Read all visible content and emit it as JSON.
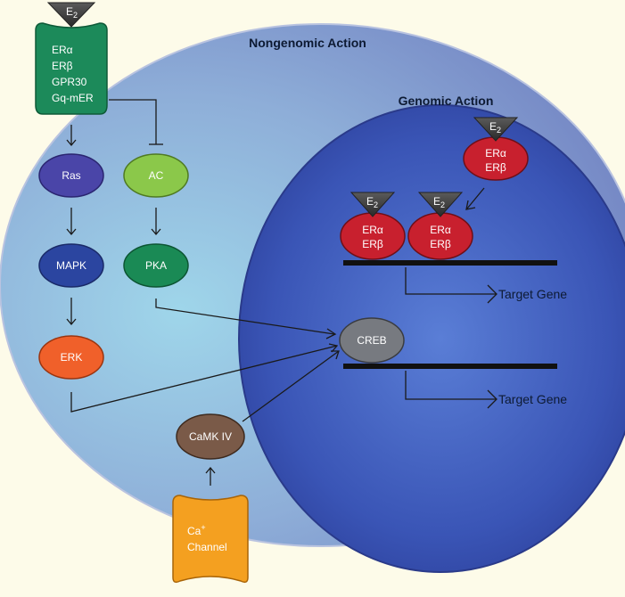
{
  "titles": {
    "nongenomic": "Nongenomic Action",
    "genomic": "Genomic Action"
  },
  "ligand": {
    "symbol": "E",
    "subscript": "2"
  },
  "receptor_box": {
    "lines": [
      "ERα",
      "ERβ",
      "GPR30",
      "Gq-mER"
    ],
    "color": "#1c8a5a"
  },
  "nodes": {
    "ras": {
      "label": "Ras",
      "color": "#4a45a8"
    },
    "ac": {
      "label": "AC",
      "color": "#8bc84a"
    },
    "mapk": {
      "label": "MAPK",
      "color": "#2b45a0"
    },
    "pka": {
      "label": "PKA",
      "color": "#1a8a55"
    },
    "erk": {
      "label": "ERK",
      "color": "#f0602a"
    },
    "creb": {
      "label": "CREB",
      "color": "#777a80"
    },
    "camk": {
      "label": "CaMK IV",
      "color": "#7a5a48"
    }
  },
  "ca_channel": {
    "line1": "Ca",
    "superscript": "+",
    "line2": "Channel",
    "color": "#f4a020"
  },
  "nuclear_receptors": {
    "line1": "ERα",
    "line2": "ERβ",
    "color": "#c8202e"
  },
  "target_gene": "Target Gene"
}
